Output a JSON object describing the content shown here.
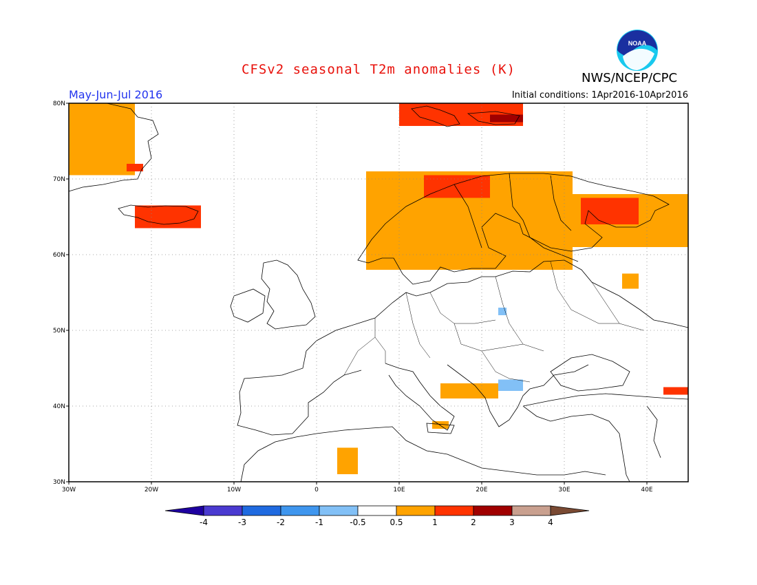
{
  "header": {
    "title": "CFSv2 seasonal T2m anomalies (K)",
    "agency": "NWS/NCEP/CPC",
    "logo_text": "NOAA",
    "period": "May-Jun-Jul 2016",
    "initial_conditions": "Initial conditions: 1Apr2016-10Apr2016"
  },
  "map": {
    "lon_range": [
      -30,
      45
    ],
    "lat_range": [
      30,
      80
    ],
    "lon_ticks": [
      {
        "value": -30,
        "label": "30W"
      },
      {
        "value": -20,
        "label": "20W"
      },
      {
        "value": -10,
        "label": "10W"
      },
      {
        "value": 0,
        "label": "0"
      },
      {
        "value": 10,
        "label": "10E"
      },
      {
        "value": 20,
        "label": "20E"
      },
      {
        "value": 30,
        "label": "30E"
      },
      {
        "value": 40,
        "label": "40E"
      }
    ],
    "lat_ticks": [
      {
        "value": 30,
        "label": "30N"
      },
      {
        "value": 40,
        "label": "40N"
      },
      {
        "value": 50,
        "label": "50N"
      },
      {
        "value": 60,
        "label": "60N"
      },
      {
        "value": 70,
        "label": "70N"
      },
      {
        "value": 80,
        "label": "80N"
      }
    ],
    "anomaly_patches": [
      {
        "region": "Greenland",
        "lon": [
          -30,
          -22
        ],
        "lat": [
          70.5,
          80
        ],
        "category": "0.5-1"
      },
      {
        "region": "Greenland coast",
        "lon": [
          -23,
          -21
        ],
        "lat": [
          71,
          72
        ],
        "category": "1-2"
      },
      {
        "region": "Iceland",
        "lon": [
          -22,
          -14
        ],
        "lat": [
          63.5,
          66.5
        ],
        "category": "1-2"
      },
      {
        "region": "Svalbard",
        "lon": [
          10,
          25
        ],
        "lat": [
          77,
          80
        ],
        "category": "1-2"
      },
      {
        "region": "Svalbard NE",
        "lon": [
          21,
          25
        ],
        "lat": [
          77.5,
          78.5
        ],
        "category": "2-3"
      },
      {
        "region": "Scandinavia",
        "lon": [
          6,
          31
        ],
        "lat": [
          58,
          71
        ],
        "category": "0.5-1"
      },
      {
        "region": "Northern Norway",
        "lon": [
          13,
          21
        ],
        "lat": [
          67.5,
          70.5
        ],
        "category": "1-2"
      },
      {
        "region": "Kola / Barents",
        "lon": [
          30,
          45
        ],
        "lat": [
          61,
          68
        ],
        "category": "0.5-1"
      },
      {
        "region": "Kola peninsula",
        "lon": [
          32,
          39
        ],
        "lat": [
          64,
          67.5
        ],
        "category": "1-2"
      },
      {
        "region": "Central Russia",
        "lon": [
          37,
          39
        ],
        "lat": [
          55.5,
          57.5
        ],
        "category": "0.5-1"
      },
      {
        "region": "Italy",
        "lon": [
          14,
          16
        ],
        "lat": [
          37,
          38
        ],
        "category": "0.5-1"
      },
      {
        "region": "Balkans",
        "lon": [
          15,
          22
        ],
        "lat": [
          41,
          43
        ],
        "category": "0.5-1"
      },
      {
        "region": "Romania",
        "lon": [
          22,
          25
        ],
        "lat": [
          42,
          43.5
        ],
        "category": "-1--0.5"
      },
      {
        "region": "Caucasus",
        "lon": [
          42,
          45
        ],
        "lat": [
          41.5,
          42.5
        ],
        "category": "1-2"
      },
      {
        "region": "North Africa",
        "lon": [
          2.5,
          5
        ],
        "lat": [
          31,
          34.5
        ],
        "category": "0.5-1"
      },
      {
        "region": "Poland",
        "lon": [
          22,
          23
        ],
        "lat": [
          52,
          53
        ],
        "category": "-1--0.5"
      }
    ]
  },
  "colorbar": {
    "labels": [
      "-4",
      "-3",
      "-2",
      "-1",
      "-0.5",
      "0.5",
      "1",
      "2",
      "3",
      "4"
    ],
    "colors": [
      "#1e00a0",
      "#4a3ad0",
      "#1f6ae0",
      "#3f96ee",
      "#82c0f6",
      "#ffffff",
      "#ffa300",
      "#ff3300",
      "#a00000",
      "#c9a08f",
      "#7a4a33"
    ]
  },
  "chart_data": {
    "type": "heatmap",
    "title": "CFSv2 seasonal T2m anomalies (K)",
    "subtitle": "May-Jun-Jul 2016",
    "xlabel": "",
    "ylabel": "",
    "xlim": [
      -30,
      45
    ],
    "ylim": [
      30,
      80
    ],
    "x_ticks": [
      "30W",
      "20W",
      "10W",
      "0",
      "10E",
      "20E",
      "30E",
      "40E"
    ],
    "y_ticks": [
      "30N",
      "40N",
      "50N",
      "60N",
      "70N",
      "80N"
    ],
    "color_levels": [
      -4,
      -3,
      -2,
      -1,
      -0.5,
      0.5,
      1,
      2,
      3,
      4
    ],
    "grid": true
  }
}
